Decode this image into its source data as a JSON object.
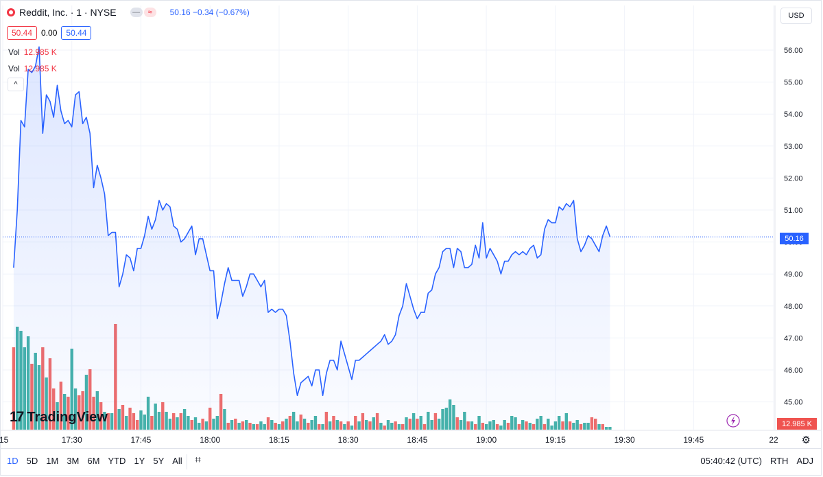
{
  "header": {
    "title": "Reddit, Inc. · 1 · NYSE",
    "pill_a": "—",
    "pill_b": "≈",
    "quote": "50.16 −0.34 (−0.67%)"
  },
  "ohlc": {
    "left": "50.44",
    "mid": "0.00",
    "right": "50.44"
  },
  "vol_rows": [
    {
      "label": "Vol",
      "value": "12.985 K"
    },
    {
      "label": "Vol",
      "value": "12.985 K"
    }
  ],
  "collapse_glyph": "^",
  "currency": "USD",
  "logo_text": "TradingView",
  "logo_mark": "17",
  "colors": {
    "line": "#2962ff",
    "up": "#26a69a",
    "down": "#ef5350"
  },
  "chart_data": {
    "type": "line",
    "y_ticks": [
      "56.00",
      "55.00",
      "54.00",
      "53.00",
      "52.00",
      "51.00",
      "50.00",
      "49.00",
      "48.00",
      "47.00",
      "46.00",
      "45.00"
    ],
    "ylim": [
      44.65,
      56.52
    ],
    "x_tick_labels": [
      {
        "label": ":15",
        "t": -3
      },
      {
        "label": "17:30",
        "t": 16
      },
      {
        "label": "17:45",
        "t": 35
      },
      {
        "label": "18:00",
        "t": 54
      },
      {
        "label": "18:15",
        "t": 73
      },
      {
        "label": "18:30",
        "t": 92
      },
      {
        "label": "18:45",
        "t": 111
      },
      {
        "label": "19:00",
        "t": 130
      },
      {
        "label": "19:15",
        "t": 149
      },
      {
        "label": "19:30",
        "t": 168
      },
      {
        "label": "19:45",
        "t": 187
      },
      {
        "label": "22",
        "t": 209
      }
    ],
    "price_points": [
      [
        0,
        49.2
      ],
      [
        1,
        51.0
      ],
      [
        2,
        53.8
      ],
      [
        3,
        53.6
      ],
      [
        4,
        55.4
      ],
      [
        5,
        55.3
      ],
      [
        6,
        55.5
      ],
      [
        7,
        56.1
      ],
      [
        8,
        53.4
      ],
      [
        9,
        54.6
      ],
      [
        10,
        54.4
      ],
      [
        11,
        53.9
      ],
      [
        12,
        54.9
      ],
      [
        13,
        54.1
      ],
      [
        14,
        53.7
      ],
      [
        15,
        53.8
      ],
      [
        16,
        53.6
      ],
      [
        17,
        54.6
      ],
      [
        18,
        54.7
      ],
      [
        19,
        53.7
      ],
      [
        20,
        53.9
      ],
      [
        21,
        53.4
      ],
      [
        22,
        51.7
      ],
      [
        23,
        52.4
      ],
      [
        24,
        52.0
      ],
      [
        25,
        51.5
      ],
      [
        26,
        50.2
      ],
      [
        27,
        50.3
      ],
      [
        28,
        50.3
      ],
      [
        29,
        48.6
      ],
      [
        30,
        49.0
      ],
      [
        31,
        49.6
      ],
      [
        32,
        49.5
      ],
      [
        33,
        49.1
      ],
      [
        34,
        49.8
      ],
      [
        35,
        49.8
      ],
      [
        36,
        50.2
      ],
      [
        37,
        50.8
      ],
      [
        38,
        50.4
      ],
      [
        39,
        50.7
      ],
      [
        40,
        51.3
      ],
      [
        41,
        51.0
      ],
      [
        42,
        51.2
      ],
      [
        43,
        51.1
      ],
      [
        44,
        50.5
      ],
      [
        45,
        50.4
      ],
      [
        46,
        50.0
      ],
      [
        47,
        50.1
      ],
      [
        48,
        50.3
      ],
      [
        49,
        50.5
      ],
      [
        50,
        49.6
      ],
      [
        51,
        50.1
      ],
      [
        52,
        50.1
      ],
      [
        53,
        49.6
      ],
      [
        54,
        49.1
      ],
      [
        55,
        49.1
      ],
      [
        56,
        47.6
      ],
      [
        57,
        48.1
      ],
      [
        58,
        48.7
      ],
      [
        59,
        49.2
      ],
      [
        60,
        48.8
      ],
      [
        61,
        48.8
      ],
      [
        62,
        48.8
      ],
      [
        63,
        48.3
      ],
      [
        64,
        48.6
      ],
      [
        65,
        49.0
      ],
      [
        66,
        49.0
      ],
      [
        67,
        48.8
      ],
      [
        68,
        48.6
      ],
      [
        69,
        48.8
      ],
      [
        70,
        47.8
      ],
      [
        71,
        47.9
      ],
      [
        72,
        47.8
      ],
      [
        73,
        47.9
      ],
      [
        74,
        47.9
      ],
      [
        75,
        47.7
      ],
      [
        76,
        46.9
      ],
      [
        77,
        45.9
      ],
      [
        78,
        45.2
      ],
      [
        79,
        45.6
      ],
      [
        80,
        45.7
      ],
      [
        81,
        45.8
      ],
      [
        82,
        45.5
      ],
      [
        83,
        46.0
      ],
      [
        84,
        46.0
      ],
      [
        85,
        45.2
      ],
      [
        86,
        45.9
      ],
      [
        87,
        46.3
      ],
      [
        88,
        46.3
      ],
      [
        89,
        46.0
      ],
      [
        90,
        46.9
      ],
      [
        91,
        46.5
      ],
      [
        92,
        46.1
      ],
      [
        93,
        45.7
      ],
      [
        94,
        46.3
      ],
      [
        95,
        46.3
      ],
      [
        96,
        46.4
      ],
      [
        97,
        46.5
      ],
      [
        98,
        46.6
      ],
      [
        99,
        46.7
      ],
      [
        100,
        46.8
      ],
      [
        101,
        46.9
      ],
      [
        102,
        47.1
      ],
      [
        103,
        46.8
      ],
      [
        104,
        46.9
      ],
      [
        105,
        47.1
      ],
      [
        106,
        47.7
      ],
      [
        107,
        48.0
      ],
      [
        108,
        48.7
      ],
      [
        109,
        48.3
      ],
      [
        110,
        47.9
      ],
      [
        111,
        47.6
      ],
      [
        112,
        47.8
      ],
      [
        113,
        47.8
      ],
      [
        114,
        48.4
      ],
      [
        115,
        48.5
      ],
      [
        116,
        49.0
      ],
      [
        117,
        49.2
      ],
      [
        118,
        49.7
      ],
      [
        119,
        49.8
      ],
      [
        120,
        49.8
      ],
      [
        121,
        49.2
      ],
      [
        122,
        49.8
      ],
      [
        123,
        49.7
      ],
      [
        124,
        49.2
      ],
      [
        125,
        49.2
      ],
      [
        126,
        49.3
      ],
      [
        127,
        49.9
      ],
      [
        128,
        49.5
      ],
      [
        129,
        50.6
      ],
      [
        130,
        49.5
      ],
      [
        131,
        49.8
      ],
      [
        132,
        49.6
      ],
      [
        133,
        49.4
      ],
      [
        134,
        49.0
      ],
      [
        135,
        49.4
      ],
      [
        136,
        49.4
      ],
      [
        137,
        49.6
      ],
      [
        138,
        49.7
      ],
      [
        139,
        49.6
      ],
      [
        140,
        49.7
      ],
      [
        141,
        49.6
      ],
      [
        142,
        49.8
      ],
      [
        143,
        49.9
      ],
      [
        144,
        49.5
      ],
      [
        145,
        49.6
      ],
      [
        146,
        50.4
      ],
      [
        147,
        50.7
      ],
      [
        148,
        50.6
      ],
      [
        149,
        50.6
      ],
      [
        150,
        51.1
      ],
      [
        151,
        51.0
      ],
      [
        152,
        51.2
      ],
      [
        153,
        51.1
      ],
      [
        154,
        51.3
      ],
      [
        155,
        50.1
      ],
      [
        156,
        49.7
      ],
      [
        157,
        49.9
      ],
      [
        158,
        50.2
      ],
      [
        159,
        50.1
      ],
      [
        160,
        49.9
      ],
      [
        161,
        49.7
      ],
      [
        162,
        50.2
      ],
      [
        163,
        50.5
      ],
      [
        164,
        50.16
      ]
    ],
    "volume_bars": [
      [
        0,
        6.0,
        "d"
      ],
      [
        1,
        7.5,
        "u"
      ],
      [
        2,
        7.2,
        "u"
      ],
      [
        3,
        6.0,
        "u"
      ],
      [
        4,
        6.8,
        "u"
      ],
      [
        5,
        4.8,
        "d"
      ],
      [
        6,
        5.6,
        "u"
      ],
      [
        7,
        4.7,
        "u"
      ],
      [
        8,
        6.0,
        "d"
      ],
      [
        9,
        3.8,
        "u"
      ],
      [
        10,
        5.2,
        "d"
      ],
      [
        11,
        3.0,
        "d"
      ],
      [
        12,
        2.0,
        "u"
      ],
      [
        13,
        3.5,
        "d"
      ],
      [
        14,
        2.6,
        "u"
      ],
      [
        15,
        2.4,
        "d"
      ],
      [
        16,
        5.9,
        "u"
      ],
      [
        17,
        3.0,
        "u"
      ],
      [
        18,
        2.5,
        "d"
      ],
      [
        19,
        2.8,
        "d"
      ],
      [
        20,
        4.0,
        "u"
      ],
      [
        21,
        4.4,
        "d"
      ],
      [
        22,
        2.4,
        "d"
      ],
      [
        23,
        2.8,
        "u"
      ],
      [
        24,
        2.0,
        "d"
      ],
      [
        25,
        1.3,
        "u"
      ],
      [
        26,
        1.2,
        "d"
      ],
      [
        27,
        1.2,
        "u"
      ],
      [
        28,
        7.7,
        "d"
      ],
      [
        29,
        1.5,
        "u"
      ],
      [
        30,
        1.8,
        "d"
      ],
      [
        31,
        1.0,
        "u"
      ],
      [
        32,
        1.6,
        "d"
      ],
      [
        33,
        1.2,
        "d"
      ],
      [
        34,
        0.7,
        "d"
      ],
      [
        35,
        1.4,
        "u"
      ],
      [
        36,
        1.1,
        "u"
      ],
      [
        37,
        2.4,
        "u"
      ],
      [
        38,
        1.0,
        "d"
      ],
      [
        39,
        1.9,
        "u"
      ],
      [
        40,
        1.3,
        "u"
      ],
      [
        41,
        2.0,
        "d"
      ],
      [
        42,
        1.3,
        "u"
      ],
      [
        43,
        0.8,
        "u"
      ],
      [
        44,
        1.2,
        "d"
      ],
      [
        45,
        0.9,
        "u"
      ],
      [
        46,
        1.2,
        "d"
      ],
      [
        47,
        1.5,
        "u"
      ],
      [
        48,
        1.0,
        "u"
      ],
      [
        49,
        0.7,
        "d"
      ],
      [
        50,
        0.9,
        "u"
      ],
      [
        51,
        0.5,
        "u"
      ],
      [
        52,
        0.8,
        "d"
      ],
      [
        53,
        0.6,
        "u"
      ],
      [
        54,
        1.6,
        "d"
      ],
      [
        55,
        0.8,
        "u"
      ],
      [
        56,
        1.0,
        "u"
      ],
      [
        57,
        2.6,
        "d"
      ],
      [
        58,
        1.5,
        "u"
      ],
      [
        59,
        0.5,
        "d"
      ],
      [
        60,
        0.7,
        "u"
      ],
      [
        61,
        0.8,
        "d"
      ],
      [
        62,
        0.5,
        "u"
      ],
      [
        63,
        0.6,
        "d"
      ],
      [
        64,
        0.7,
        "u"
      ],
      [
        65,
        0.5,
        "d"
      ],
      [
        66,
        0.4,
        "u"
      ],
      [
        67,
        0.4,
        "d"
      ],
      [
        68,
        0.6,
        "u"
      ],
      [
        69,
        0.4,
        "u"
      ],
      [
        70,
        0.9,
        "d"
      ],
      [
        71,
        0.7,
        "u"
      ],
      [
        72,
        0.5,
        "d"
      ],
      [
        73,
        0.4,
        "u"
      ],
      [
        74,
        0.6,
        "d"
      ],
      [
        75,
        0.8,
        "u"
      ],
      [
        76,
        1.0,
        "d"
      ],
      [
        77,
        1.3,
        "u"
      ],
      [
        78,
        0.6,
        "u"
      ],
      [
        79,
        1.1,
        "d"
      ],
      [
        80,
        0.8,
        "u"
      ],
      [
        81,
        0.5,
        "d"
      ],
      [
        82,
        0.7,
        "u"
      ],
      [
        83,
        1.0,
        "u"
      ],
      [
        84,
        0.4,
        "d"
      ],
      [
        85,
        0.4,
        "u"
      ],
      [
        86,
        1.3,
        "d"
      ],
      [
        87,
        0.6,
        "u"
      ],
      [
        88,
        1.0,
        "d"
      ],
      [
        89,
        0.7,
        "u"
      ],
      [
        90,
        0.6,
        "d"
      ],
      [
        91,
        0.4,
        "u"
      ],
      [
        92,
        0.6,
        "d"
      ],
      [
        93,
        0.3,
        "u"
      ],
      [
        94,
        1.0,
        "d"
      ],
      [
        95,
        0.6,
        "u"
      ],
      [
        96,
        1.2,
        "d"
      ],
      [
        97,
        0.7,
        "u"
      ],
      [
        98,
        0.6,
        "d"
      ],
      [
        99,
        0.9,
        "u"
      ],
      [
        100,
        1.2,
        "d"
      ],
      [
        101,
        0.5,
        "u"
      ],
      [
        102,
        0.3,
        "d"
      ],
      [
        103,
        0.7,
        "u"
      ],
      [
        104,
        0.5,
        "u"
      ],
      [
        105,
        0.6,
        "d"
      ],
      [
        106,
        0.4,
        "u"
      ],
      [
        107,
        0.4,
        "d"
      ],
      [
        108,
        0.9,
        "u"
      ],
      [
        109,
        0.8,
        "d"
      ],
      [
        110,
        1.2,
        "u"
      ],
      [
        111,
        0.8,
        "d"
      ],
      [
        112,
        1.0,
        "u"
      ],
      [
        113,
        0.4,
        "d"
      ],
      [
        114,
        1.3,
        "u"
      ],
      [
        115,
        0.7,
        "u"
      ],
      [
        116,
        1.2,
        "d"
      ],
      [
        117,
        0.8,
        "u"
      ],
      [
        118,
        1.5,
        "u"
      ],
      [
        119,
        1.6,
        "u"
      ],
      [
        120,
        2.2,
        "u"
      ],
      [
        121,
        1.8,
        "u"
      ],
      [
        122,
        0.9,
        "d"
      ],
      [
        123,
        0.7,
        "u"
      ],
      [
        124,
        1.3,
        "u"
      ],
      [
        125,
        0.6,
        "d"
      ],
      [
        126,
        0.6,
        "u"
      ],
      [
        127,
        0.4,
        "d"
      ],
      [
        128,
        1.0,
        "u"
      ],
      [
        129,
        0.5,
        "d"
      ],
      [
        130,
        0.4,
        "u"
      ],
      [
        131,
        0.6,
        "u"
      ],
      [
        132,
        0.7,
        "u"
      ],
      [
        133,
        0.4,
        "d"
      ],
      [
        134,
        0.3,
        "u"
      ],
      [
        135,
        0.7,
        "u"
      ],
      [
        136,
        0.5,
        "d"
      ],
      [
        137,
        1.0,
        "u"
      ],
      [
        138,
        0.9,
        "u"
      ],
      [
        139,
        0.4,
        "d"
      ],
      [
        140,
        0.7,
        "u"
      ],
      [
        141,
        0.6,
        "d"
      ],
      [
        142,
        0.5,
        "u"
      ],
      [
        143,
        0.4,
        "d"
      ],
      [
        144,
        0.8,
        "u"
      ],
      [
        145,
        1.0,
        "u"
      ],
      [
        146,
        0.4,
        "d"
      ],
      [
        147,
        0.8,
        "u"
      ],
      [
        148,
        0.3,
        "u"
      ],
      [
        149,
        0.6,
        "u"
      ],
      [
        150,
        1.0,
        "u"
      ],
      [
        151,
        0.6,
        "d"
      ],
      [
        152,
        1.2,
        "u"
      ],
      [
        153,
        0.6,
        "d"
      ],
      [
        154,
        0.5,
        "u"
      ],
      [
        155,
        0.7,
        "u"
      ],
      [
        156,
        0.4,
        "d"
      ],
      [
        157,
        0.5,
        "u"
      ],
      [
        158,
        0.5,
        "u"
      ],
      [
        159,
        0.9,
        "d"
      ],
      [
        160,
        0.8,
        "d"
      ],
      [
        161,
        0.4,
        "u"
      ],
      [
        162,
        0.4,
        "d"
      ],
      [
        163,
        0.2,
        "u"
      ],
      [
        164,
        0.2,
        "u"
      ]
    ],
    "last_price_label": "50.16",
    "volume_label": "12.985 K"
  },
  "bottom": {
    "ranges": [
      "1D",
      "5D",
      "1M",
      "3M",
      "6M",
      "YTD",
      "1Y",
      "5Y",
      "All"
    ],
    "calendar_glyph": "⌗",
    "time": "05:40:42 (UTC)",
    "rth": "RTH",
    "adj": "ADJ"
  },
  "gear_glyph": "⚙"
}
